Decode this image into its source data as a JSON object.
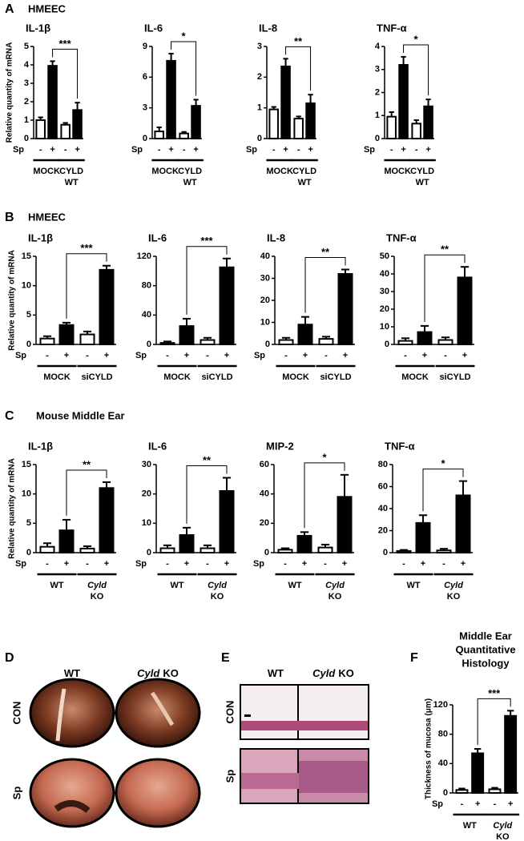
{
  "panels": [
    {
      "letter": "A",
      "title": "HMEEC"
    },
    {
      "letter": "B",
      "title": "HMEEC"
    },
    {
      "letter": "C",
      "title": "Mouse Middle Ear"
    },
    {
      "letter": "D",
      "columns": [
        {
          "text": [
            "WT"
          ],
          "italic": [
            false
          ]
        },
        {
          "text": [
            "Cyld",
            "KO"
          ],
          "italic": [
            true,
            false
          ]
        }
      ],
      "rows": [
        "CON",
        "Sp"
      ]
    },
    {
      "letter": "E",
      "columns": [
        {
          "text": [
            "WT"
          ],
          "italic": [
            false
          ]
        },
        {
          "text": [
            "Cyld",
            "KO"
          ],
          "italic": [
            true,
            false
          ]
        }
      ],
      "rows": [
        "CON",
        "Sp"
      ]
    },
    {
      "letter": "F"
    }
  ],
  "chart_data": [
    {
      "type": "bar",
      "title": "IL-1β",
      "y_label": "Relative quantity of mRNA",
      "ylim": [
        0,
        5
      ],
      "yticks": [
        0,
        1,
        2,
        3,
        4,
        5
      ],
      "categories": [
        "-",
        "+",
        "-",
        "+"
      ],
      "category_label": "Sp",
      "values": [
        1.0,
        3.95,
        0.75,
        1.55
      ],
      "errors": [
        0.15,
        0.25,
        0.1,
        0.4
      ],
      "colors": [
        "#ffffff",
        "#000000",
        "#ffffff",
        "#000000"
      ],
      "groups": [
        {
          "text": [
            "MOCK"
          ],
          "italic": [
            false
          ]
        },
        {
          "text": [
            "CYLD",
            "WT"
          ],
          "italic": [
            false,
            false
          ]
        }
      ],
      "significance": "***"
    },
    {
      "type": "bar",
      "title": "IL-6",
      "ylim": [
        0,
        9
      ],
      "yticks": [
        0,
        3,
        6,
        9
      ],
      "categories": [
        "-",
        "+",
        "-",
        "+"
      ],
      "category_label": "Sp",
      "values": [
        0.7,
        7.6,
        0.5,
        3.2
      ],
      "errors": [
        0.4,
        0.7,
        0.15,
        0.6
      ],
      "colors": [
        "#ffffff",
        "#000000",
        "#ffffff",
        "#000000"
      ],
      "groups": [
        {
          "text": [
            "MOCK"
          ],
          "italic": [
            false
          ]
        },
        {
          "text": [
            "CYLD",
            "WT"
          ],
          "italic": [
            false,
            false
          ]
        }
      ],
      "significance": "*"
    },
    {
      "type": "bar",
      "title": "IL-8",
      "ylim": [
        0,
        3
      ],
      "yticks": [
        0,
        1,
        2,
        3
      ],
      "categories": [
        "-",
        "+",
        "-",
        "+"
      ],
      "category_label": "Sp",
      "values": [
        0.95,
        2.35,
        0.65,
        1.15
      ],
      "errors": [
        0.08,
        0.25,
        0.07,
        0.28
      ],
      "colors": [
        "#ffffff",
        "#000000",
        "#ffffff",
        "#000000"
      ],
      "groups": [
        {
          "text": [
            "MOCK"
          ],
          "italic": [
            false
          ]
        },
        {
          "text": [
            "CYLD",
            "WT"
          ],
          "italic": [
            false,
            false
          ]
        }
      ],
      "significance": "**"
    },
    {
      "type": "bar",
      "title": "TNF-α",
      "ylim": [
        0,
        4
      ],
      "yticks": [
        0,
        1,
        2,
        3,
        4
      ],
      "categories": [
        "-",
        "+",
        "-",
        "+"
      ],
      "category_label": "Sp",
      "values": [
        0.95,
        3.2,
        0.65,
        1.4
      ],
      "errors": [
        0.2,
        0.35,
        0.15,
        0.3
      ],
      "colors": [
        "#ffffff",
        "#000000",
        "#ffffff",
        "#000000"
      ],
      "groups": [
        {
          "text": [
            "MOCK"
          ],
          "italic": [
            false
          ]
        },
        {
          "text": [
            "CYLD",
            "WT"
          ],
          "italic": [
            false,
            false
          ]
        }
      ],
      "significance": "*"
    },
    {
      "type": "bar",
      "title": "IL-1β",
      "y_label": "Relative quantity of mRNA",
      "ylim": [
        0,
        15
      ],
      "yticks": [
        0,
        5,
        10,
        15
      ],
      "categories": [
        "-",
        "+",
        "-",
        "+"
      ],
      "category_label": "Sp",
      "values": [
        1.0,
        3.3,
        1.7,
        12.7
      ],
      "errors": [
        0.4,
        0.4,
        0.5,
        0.7
      ],
      "colors": [
        "#ffffff",
        "#000000",
        "#ffffff",
        "#000000"
      ],
      "groups": [
        {
          "text": [
            "MOCK"
          ],
          "italic": [
            false
          ]
        },
        {
          "text": [
            "siCYLD"
          ],
          "italic": [
            false
          ]
        }
      ],
      "significance": "***"
    },
    {
      "type": "bar",
      "title": "IL-6",
      "ylim": [
        0,
        120
      ],
      "yticks": [
        0,
        40,
        80,
        120
      ],
      "categories": [
        "-",
        "+",
        "-",
        "+"
      ],
      "category_label": "Sp",
      "values": [
        2,
        25,
        6,
        105
      ],
      "errors": [
        2,
        10,
        3,
        12
      ],
      "colors": [
        "#ffffff",
        "#000000",
        "#ffffff",
        "#000000"
      ],
      "groups": [
        {
          "text": [
            "MOCK"
          ],
          "italic": [
            false
          ]
        },
        {
          "text": [
            "siCYLD"
          ],
          "italic": [
            false
          ]
        }
      ],
      "significance": "***"
    },
    {
      "type": "bar",
      "title": "IL-8",
      "ylim": [
        0,
        40
      ],
      "yticks": [
        0,
        10,
        20,
        30,
        40
      ],
      "categories": [
        "-",
        "+",
        "-",
        "+"
      ],
      "category_label": "Sp",
      "values": [
        2,
        9,
        2.5,
        32
      ],
      "errors": [
        1,
        3.5,
        1,
        2
      ],
      "colors": [
        "#ffffff",
        "#000000",
        "#ffffff",
        "#000000"
      ],
      "groups": [
        {
          "text": [
            "MOCK"
          ],
          "italic": [
            false
          ]
        },
        {
          "text": [
            "siCYLD"
          ],
          "italic": [
            false
          ]
        }
      ],
      "significance": "**"
    },
    {
      "type": "bar",
      "title": "TNF-α",
      "ylim": [
        0,
        50
      ],
      "yticks": [
        0,
        10,
        20,
        30,
        40,
        50
      ],
      "categories": [
        "-",
        "+",
        "-",
        "+"
      ],
      "values": [
        2,
        7,
        2.5,
        38
      ],
      "errors": [
        1.5,
        3.5,
        1.5,
        6
      ],
      "colors": [
        "#ffffff",
        "#000000",
        "#ffffff",
        "#000000"
      ],
      "groups": [
        {
          "text": [
            "MOCK"
          ],
          "italic": [
            false
          ]
        },
        {
          "text": [
            "siCYLD"
          ],
          "italic": [
            false
          ]
        }
      ],
      "significance": "**"
    },
    {
      "type": "bar",
      "title": "IL-1β",
      "y_label": "Relative quantity of mRNA",
      "ylim": [
        0,
        15
      ],
      "yticks": [
        0,
        5,
        10,
        15
      ],
      "categories": [
        "-",
        "+",
        "-",
        "+"
      ],
      "category_label": "Sp",
      "values": [
        1,
        3.8,
        0.7,
        11
      ],
      "errors": [
        0.6,
        1.8,
        0.4,
        1
      ],
      "colors": [
        "#ffffff",
        "#000000",
        "#ffffff",
        "#000000"
      ],
      "groups": [
        {
          "text": [
            "WT"
          ],
          "italic": [
            false
          ]
        },
        {
          "text": [
            "Cyld",
            "KO"
          ],
          "italic": [
            true,
            false
          ]
        }
      ],
      "significance": "**"
    },
    {
      "type": "bar",
      "title": "IL-6",
      "ylim": [
        0,
        30
      ],
      "yticks": [
        0,
        10,
        20,
        30
      ],
      "categories": [
        "-",
        "+",
        "-",
        "+"
      ],
      "category_label": "Sp",
      "values": [
        1.5,
        6,
        1.5,
        21
      ],
      "errors": [
        1,
        2.5,
        1,
        4.5
      ],
      "colors": [
        "#ffffff",
        "#000000",
        "#ffffff",
        "#000000"
      ],
      "groups": [
        {
          "text": [
            "WT"
          ],
          "italic": [
            false
          ]
        },
        {
          "text": [
            "Cyld",
            "KO"
          ],
          "italic": [
            true,
            false
          ]
        }
      ],
      "significance": "**"
    },
    {
      "type": "bar",
      "title": "MIP-2",
      "ylim": [
        0,
        60
      ],
      "yticks": [
        0,
        20,
        40,
        60
      ],
      "categories": [
        "-",
        "+",
        "-",
        "+"
      ],
      "category_label": "Sp",
      "values": [
        2,
        11.5,
        3.5,
        38
      ],
      "errors": [
        1,
        2.5,
        2,
        15
      ],
      "colors": [
        "#ffffff",
        "#000000",
        "#ffffff",
        "#000000"
      ],
      "groups": [
        {
          "text": [
            "WT"
          ],
          "italic": [
            false
          ]
        },
        {
          "text": [
            "Cyld",
            "KO"
          ],
          "italic": [
            true,
            false
          ]
        }
      ],
      "significance": "*"
    },
    {
      "type": "bar",
      "title": "TNF-α",
      "ylim": [
        0,
        80
      ],
      "yticks": [
        0,
        20,
        40,
        60,
        80
      ],
      "categories": [
        "-",
        "+",
        "-",
        "+"
      ],
      "values": [
        1.5,
        27,
        2,
        52
      ],
      "errors": [
        1,
        7,
        1.5,
        13
      ],
      "colors": [
        "#ffffff",
        "#000000",
        "#ffffff",
        "#000000"
      ],
      "groups": [
        {
          "text": [
            "WT"
          ],
          "italic": [
            false
          ]
        },
        {
          "text": [
            "Cyld",
            "KO"
          ],
          "italic": [
            true,
            false
          ]
        }
      ],
      "significance": "*"
    },
    {
      "type": "bar",
      "title": [
        "Middle Ear",
        "Quantitative",
        "Histology"
      ],
      "y_label": "Thickness of mucosa (μm)",
      "ylim": [
        0,
        120
      ],
      "yticks": [
        0,
        40,
        80,
        120
      ],
      "categories": [
        "-",
        "+",
        "-",
        "+"
      ],
      "category_label": "Sp",
      "values": [
        4,
        54,
        5,
        105
      ],
      "errors": [
        2,
        6,
        2,
        7
      ],
      "colors": [
        "#ffffff",
        "#000000",
        "#ffffff",
        "#000000"
      ],
      "groups": [
        {
          "text": [
            "WT"
          ],
          "italic": [
            false
          ]
        },
        {
          "text": [
            "Cyld",
            "KO"
          ],
          "italic": [
            true,
            false
          ]
        }
      ],
      "significance": "***"
    }
  ]
}
